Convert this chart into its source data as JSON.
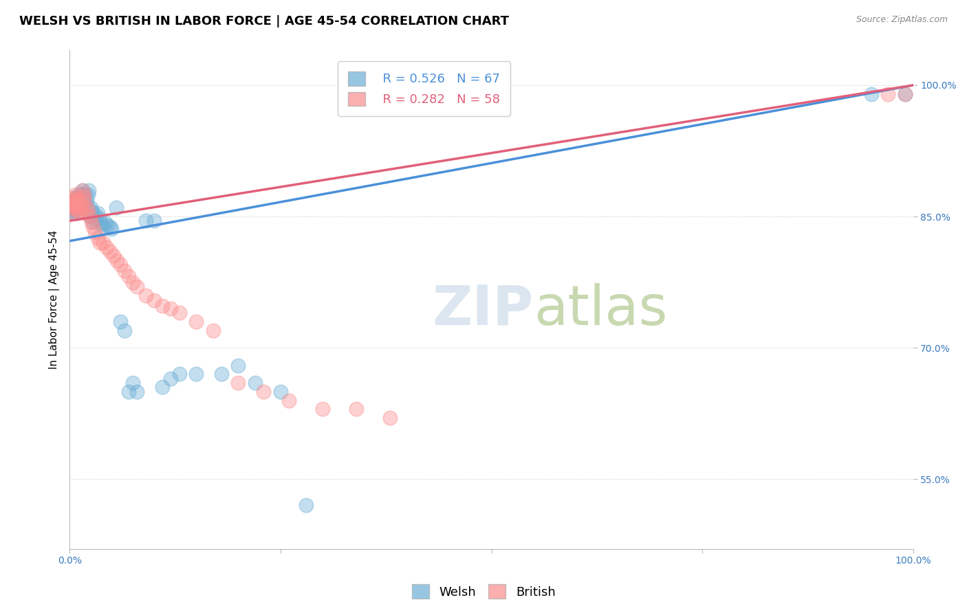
{
  "title": "WELSH VS BRITISH IN LABOR FORCE | AGE 45-54 CORRELATION CHART",
  "source": "Source: ZipAtlas.com",
  "ylabel": "In Labor Force | Age 45-54",
  "xlim": [
    0.0,
    1.0
  ],
  "ylim": [
    0.47,
    1.04
  ],
  "yticks": [
    0.55,
    0.7,
    0.85,
    1.0
  ],
  "ytick_labels": [
    "55.0%",
    "70.0%",
    "85.0%",
    "100.0%"
  ],
  "xticks": [
    0.0,
    0.25,
    0.5,
    0.75,
    1.0
  ],
  "xtick_labels": [
    "0.0%",
    "",
    "",
    "",
    "100.0%"
  ],
  "welsh_R": 0.526,
  "welsh_N": 67,
  "british_R": 0.282,
  "british_N": 58,
  "welsh_color": "#6baed6",
  "british_color": "#fc8d8d",
  "welsh_line_color": "#4a90d9",
  "british_line_color": "#e0607a",
  "background_color": "#ffffff",
  "grid_color": "#cccccc",
  "watermark_color": "#dce6f0",
  "title_fontsize": 13,
  "axis_label_fontsize": 11,
  "tick_fontsize": 10,
  "legend_fontsize": 13,
  "welsh_intercept": 0.822,
  "welsh_slope": 0.178,
  "british_intercept": 0.845,
  "british_slope": 0.155,
  "welsh_x": [
    0.003,
    0.003,
    0.004,
    0.004,
    0.005,
    0.005,
    0.005,
    0.006,
    0.006,
    0.007,
    0.007,
    0.008,
    0.008,
    0.009,
    0.009,
    0.01,
    0.01,
    0.011,
    0.011,
    0.012,
    0.012,
    0.013,
    0.014,
    0.015,
    0.015,
    0.016,
    0.017,
    0.018,
    0.019,
    0.02,
    0.021,
    0.022,
    0.023,
    0.024,
    0.025,
    0.026,
    0.027,
    0.028,
    0.03,
    0.031,
    0.033,
    0.035,
    0.037,
    0.04,
    0.042,
    0.045,
    0.048,
    0.05,
    0.055,
    0.06,
    0.065,
    0.07,
    0.075,
    0.08,
    0.09,
    0.1,
    0.11,
    0.12,
    0.13,
    0.15,
    0.18,
    0.2,
    0.22,
    0.25,
    0.28,
    0.95,
    0.99
  ],
  "welsh_y": [
    0.86,
    0.855,
    0.862,
    0.858,
    0.865,
    0.86,
    0.855,
    0.868,
    0.862,
    0.87,
    0.865,
    0.872,
    0.866,
    0.86,
    0.854,
    0.868,
    0.862,
    0.875,
    0.868,
    0.872,
    0.866,
    0.876,
    0.87,
    0.88,
    0.872,
    0.876,
    0.87,
    0.863,
    0.875,
    0.868,
    0.862,
    0.875,
    0.88,
    0.85,
    0.86,
    0.856,
    0.85,
    0.844,
    0.852,
    0.846,
    0.854,
    0.848,
    0.842,
    0.838,
    0.843,
    0.84,
    0.838,
    0.836,
    0.86,
    0.73,
    0.72,
    0.65,
    0.66,
    0.65,
    0.845,
    0.845,
    0.655,
    0.665,
    0.67,
    0.67,
    0.67,
    0.68,
    0.66,
    0.65,
    0.52,
    0.99,
    0.99
  ],
  "british_x": [
    0.002,
    0.003,
    0.004,
    0.004,
    0.005,
    0.005,
    0.006,
    0.006,
    0.007,
    0.007,
    0.008,
    0.008,
    0.009,
    0.009,
    0.01,
    0.01,
    0.011,
    0.012,
    0.013,
    0.014,
    0.015,
    0.016,
    0.017,
    0.018,
    0.019,
    0.02,
    0.022,
    0.024,
    0.026,
    0.028,
    0.03,
    0.033,
    0.036,
    0.04,
    0.044,
    0.048,
    0.052,
    0.056,
    0.06,
    0.065,
    0.07,
    0.075,
    0.08,
    0.09,
    0.1,
    0.11,
    0.12,
    0.13,
    0.15,
    0.17,
    0.2,
    0.23,
    0.26,
    0.3,
    0.34,
    0.38,
    0.97,
    0.99
  ],
  "british_y": [
    0.855,
    0.862,
    0.868,
    0.86,
    0.87,
    0.863,
    0.872,
    0.865,
    0.875,
    0.868,
    0.868,
    0.862,
    0.865,
    0.858,
    0.87,
    0.863,
    0.855,
    0.86,
    0.865,
    0.858,
    0.88,
    0.872,
    0.875,
    0.868,
    0.86,
    0.853,
    0.858,
    0.85,
    0.844,
    0.838,
    0.832,
    0.826,
    0.82,
    0.82,
    0.815,
    0.81,
    0.805,
    0.8,
    0.795,
    0.788,
    0.782,
    0.775,
    0.77,
    0.76,
    0.754,
    0.748,
    0.745,
    0.74,
    0.73,
    0.72,
    0.66,
    0.65,
    0.64,
    0.63,
    0.63,
    0.62,
    0.99,
    0.99
  ]
}
